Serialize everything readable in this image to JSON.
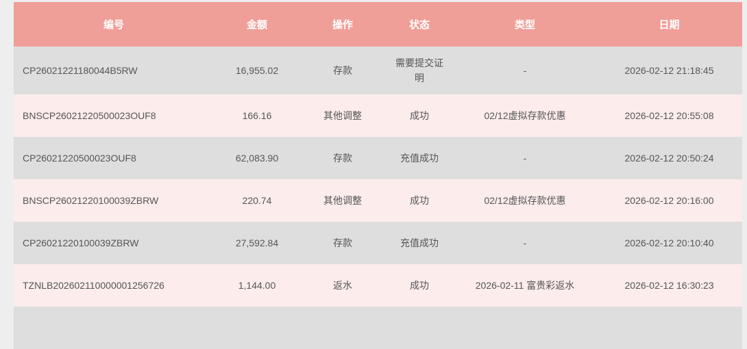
{
  "headers": [
    "编号",
    "金额",
    "操作",
    "状态",
    "类型",
    "日期"
  ],
  "rows": [
    {
      "id": "CP26021221180044B5RW",
      "amount": "16,955.02",
      "action": "存款",
      "status": "需要提交证明",
      "type": "-",
      "date": "2026-02-12 21:18:45"
    },
    {
      "id": "BNSCP26021220500023OUF8",
      "amount": "166.16",
      "action": "其他调整",
      "status": "成功",
      "type": "02/12虚拟存款优惠",
      "date": "2026-02-12 20:55:08"
    },
    {
      "id": "CP26021220500023OUF8",
      "amount": "62,083.90",
      "action": "存款",
      "status": "充值成功",
      "type": "-",
      "date": "2026-02-12 20:50:24"
    },
    {
      "id": "BNSCP26021220100039ZBRW",
      "amount": "220.74",
      "action": "其他调整",
      "status": "成功",
      "type": "02/12虚拟存款优惠",
      "date": "2026-02-12 20:16:00"
    },
    {
      "id": "CP26021220100039ZBRW",
      "amount": "27,592.84",
      "action": "存款",
      "status": "充值成功",
      "type": "-",
      "date": "2026-02-12 20:10:40"
    },
    {
      "id": "TZNLB202602110000001256726",
      "amount": "1,144.00",
      "action": "返水",
      "status": "成功",
      "type": "2026-02-11 富贵彩返水",
      "date": "2026-02-12 16:30:23"
    }
  ],
  "colors": {
    "header": "#f09e98",
    "row_even": "#dedede",
    "row_odd": "#fcecec"
  }
}
